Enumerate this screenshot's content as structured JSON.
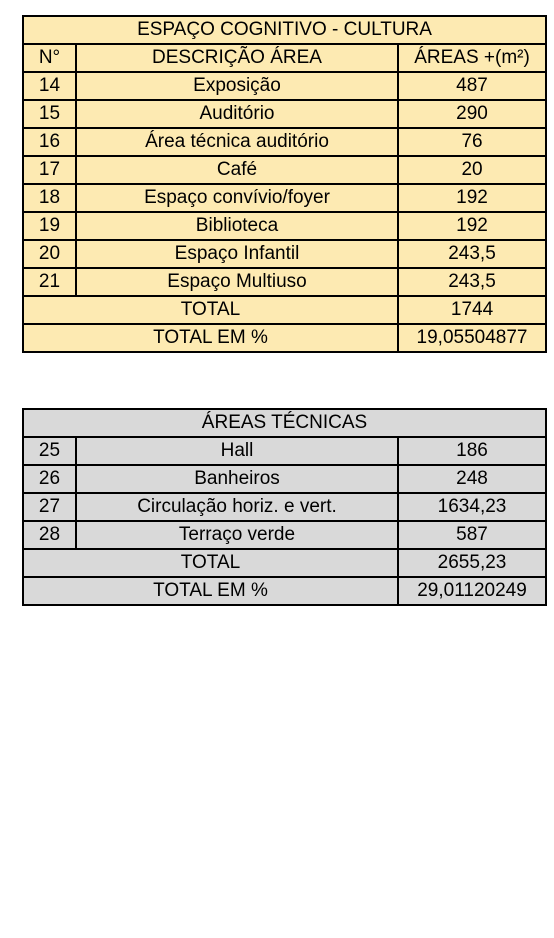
{
  "cultura": {
    "title": "ESPAÇO COGNITIVO - CULTURA",
    "headers": {
      "num": "N°",
      "desc": "DESCRIÇÃO ÁREA",
      "area": "ÁREAS +(m²)"
    },
    "rows": [
      {
        "num": "14",
        "desc": "Exposição",
        "area": "487"
      },
      {
        "num": "15",
        "desc": "Auditório",
        "area": "290"
      },
      {
        "num": "16",
        "desc": "Área técnica auditório",
        "area": "76"
      },
      {
        "num": "17",
        "desc": "Café",
        "area": "20"
      },
      {
        "num": "18",
        "desc": "Espaço convívio/foyer",
        "area": "192"
      },
      {
        "num": "19",
        "desc": "Biblioteca",
        "area": "192"
      },
      {
        "num": "20",
        "desc": "Espaço Infantil",
        "area": "243,5"
      },
      {
        "num": "21",
        "desc": "Espaço Multiuso",
        "area": "243,5"
      }
    ],
    "total_label": "TOTAL",
    "total_value": "1744",
    "percent_label": "TOTAL EM %",
    "percent_value": "19,05504877"
  },
  "tecnicas": {
    "title": "ÁREAS TÉCNICAS",
    "rows": [
      {
        "num": "25",
        "desc": "Hall",
        "area": "186"
      },
      {
        "num": "26",
        "desc": "Banheiros",
        "area": "248"
      },
      {
        "num": "27",
        "desc": "Circulação horiz. e vert.",
        "area": "1634,23"
      },
      {
        "num": "28",
        "desc": "Terraço verde",
        "area": "587"
      }
    ],
    "total_label": "TOTAL",
    "total_value": "2655,23",
    "percent_label": "TOTAL EM %",
    "percent_value": "29,01120249"
  }
}
